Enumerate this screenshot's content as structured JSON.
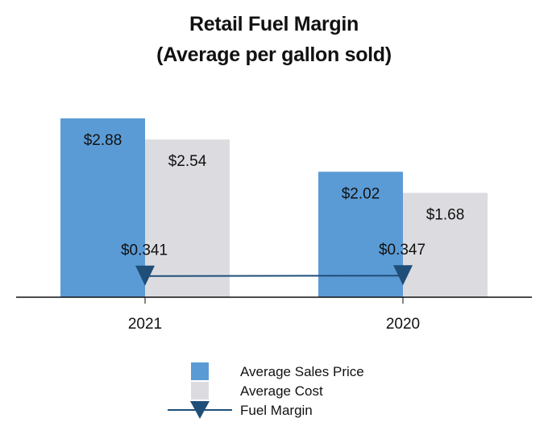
{
  "chart_data": {
    "type": "bar",
    "title": "Retail Fuel Margin",
    "subtitle": "(Average per gallon sold)",
    "categories": [
      "2021",
      "2020"
    ],
    "series": [
      {
        "name": "Average Sales Price",
        "values": [
          2.88,
          2.02
        ],
        "labels": [
          "$2.88",
          "$2.02"
        ],
        "color": "#5b9bd5"
      },
      {
        "name": "Average Cost",
        "values": [
          2.54,
          1.68
        ],
        "labels": [
          "$2.54",
          "$1.68"
        ],
        "color": "#dcdce0"
      }
    ],
    "line_series": {
      "name": "Fuel Margin",
      "type": "line",
      "marker": "triangle-down",
      "values": [
        0.341,
        0.347
      ],
      "labels": [
        "$0.341",
        "$0.347"
      ],
      "color": "#1f4e79"
    },
    "ylim": [
      0,
      3
    ],
    "xlabel": "",
    "ylabel": "",
    "grid": false,
    "legend": "bottom-center"
  }
}
